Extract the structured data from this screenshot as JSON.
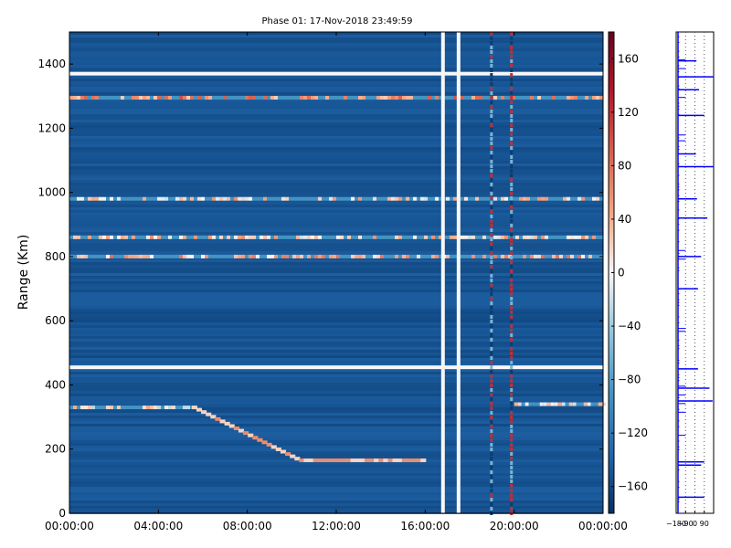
{
  "chart_data": [
    {
      "type": "heatmap",
      "title": "Phase 01: 17-Nov-2018 23:49:59",
      "ylabel": "Range (Km)",
      "xlabel": "",
      "x_ticks": [
        "00:00:00",
        "04:00:00",
        "08:00:00",
        "12:00:00",
        "16:00:00",
        "20:00:00",
        "00:00:00"
      ],
      "y_ticks": [
        0,
        200,
        400,
        600,
        800,
        1000,
        1200,
        1400
      ],
      "ylim": [
        0,
        1500
      ],
      "x_range_hours": [
        0,
        24
      ],
      "colorbar": {
        "ticks": [
          160,
          120,
          80,
          40,
          0,
          -40,
          -80,
          -120,
          -160
        ],
        "range": [
          -180,
          180
        ],
        "colormap": "RdBu_r"
      },
      "dominant_value": -150,
      "features": [
        {
          "name": "bright horizontal band",
          "range_km": 455,
          "from_hour": 0,
          "to_hour": 24,
          "value": 0
        },
        {
          "name": "bright horizontal band",
          "range_km": 1370,
          "from_hour": 0,
          "to_hour": 24,
          "value": 0
        },
        {
          "name": "speckled horizontal band",
          "range_km": 980,
          "from_hour": 0,
          "to_hour": 24,
          "value": 20
        },
        {
          "name": "speckled horizontal band",
          "range_km": 1295,
          "from_hour": 0,
          "to_hour": 24,
          "value": 60
        },
        {
          "name": "speckled horizontal band",
          "range_km": 860,
          "from_hour": 0,
          "to_hour": 24,
          "value": 20
        },
        {
          "name": "speckled horizontal band",
          "range_km": 800,
          "from_hour": 0,
          "to_hour": 24,
          "value": 40
        },
        {
          "name": "echo trace",
          "range_km": 330,
          "from_hour": 0,
          "to_hour": 5.5,
          "value": 10
        },
        {
          "name": "descending echo",
          "from_range_km": 330,
          "to_range_km": 165,
          "from_hour": 5.5,
          "to_hour": 16,
          "value": 60
        },
        {
          "name": "vertical gap",
          "at_hour": 16.8,
          "value": 0
        },
        {
          "name": "vertical gap",
          "at_hour": 17.5,
          "value": 0
        },
        {
          "name": "noisy column",
          "at_hour": 19.0,
          "value": 120
        },
        {
          "name": "noisy column",
          "at_hour": 19.9,
          "value": 120
        },
        {
          "name": "echo trace",
          "range_km": 340,
          "from_hour": 20,
          "to_hour": 24,
          "value": 20
        }
      ]
    },
    {
      "type": "line",
      "title": "",
      "x_ticks": [
        "−180",
        "−90",
        "0",
        "90"
      ],
      "xlim": [
        -180,
        180
      ],
      "ylim": [
        0,
        1500
      ],
      "color": "#0000ff",
      "spikes": [
        {
          "range_km": 1360,
          "x": 180
        },
        {
          "range_km": 1080,
          "x": 180
        },
        {
          "range_km": 920,
          "x": 120
        },
        {
          "range_km": 1240,
          "x": 90
        },
        {
          "range_km": 1320,
          "x": 40
        },
        {
          "range_km": 390,
          "x": 140
        },
        {
          "range_km": 350,
          "x": 170
        },
        {
          "range_km": 160,
          "x": 90
        },
        {
          "range_km": 150,
          "x": 60
        },
        {
          "range_km": 50,
          "x": 90
        },
        {
          "range_km": 450,
          "x": 30
        },
        {
          "range_km": 800,
          "x": 60
        },
        {
          "range_km": 700,
          "x": 30
        },
        {
          "range_km": 980,
          "x": 20
        },
        {
          "range_km": 1410,
          "x": 15
        },
        {
          "range_km": 1120,
          "x": 10
        }
      ]
    }
  ]
}
